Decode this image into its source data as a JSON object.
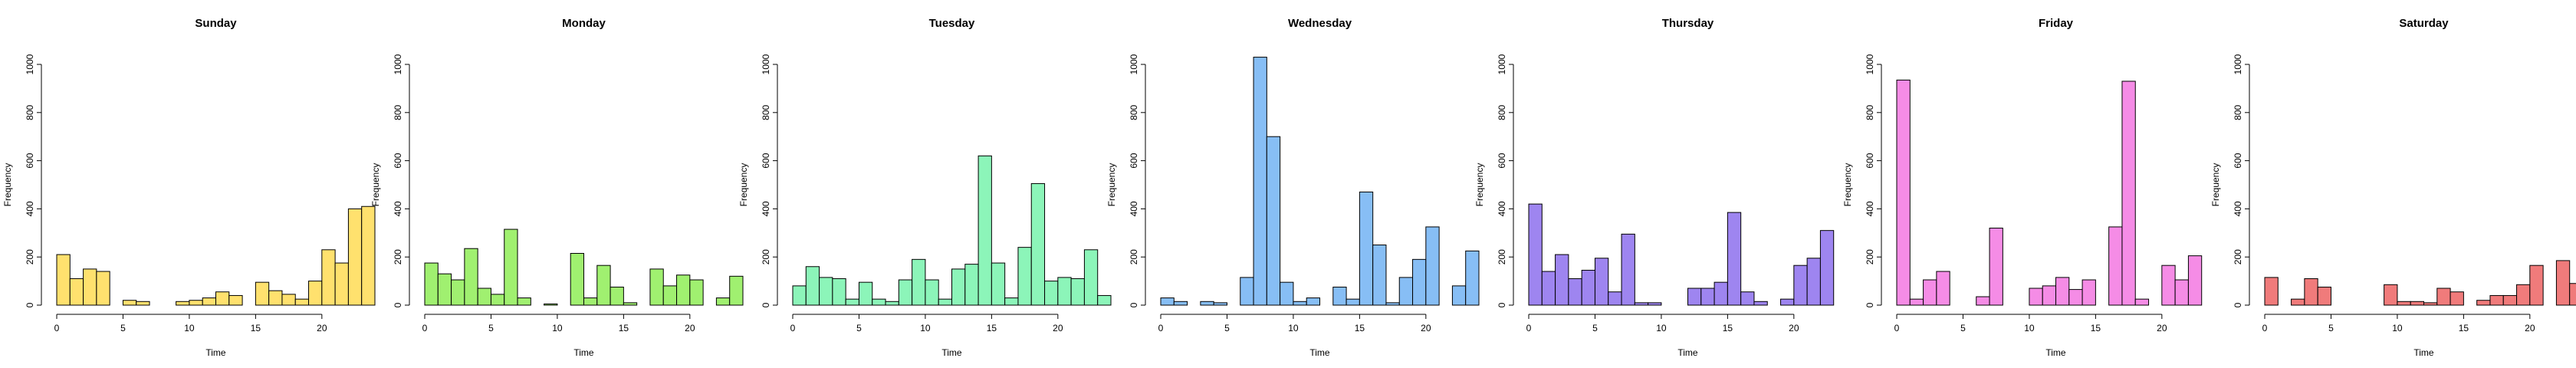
{
  "chart_data": [
    {
      "type": "bar",
      "title": "Sunday",
      "xlabel": "Time",
      "ylabel": "Frequency",
      "color": "#FFE16E",
      "xlim": [
        0,
        24
      ],
      "ylim": [
        0,
        1000
      ],
      "xticks": [
        0,
        5,
        10,
        15,
        20
      ],
      "yticks": [
        0,
        200,
        400,
        600,
        800,
        1000
      ],
      "bin_width": 1,
      "values": [
        210,
        110,
        150,
        140,
        0,
        20,
        15,
        0,
        0,
        15,
        20,
        30,
        55,
        40,
        0,
        95,
        60,
        45,
        25,
        100,
        230,
        175,
        400,
        410
      ]
    },
    {
      "type": "bar",
      "title": "Monday",
      "xlabel": "Time",
      "ylabel": "Frequency",
      "color": "#A0F070",
      "xlim": [
        0,
        24
      ],
      "ylim": [
        0,
        1000
      ],
      "xticks": [
        0,
        5,
        10,
        15,
        20
      ],
      "yticks": [
        0,
        200,
        400,
        600,
        800,
        1000
      ],
      "bin_width": 1,
      "values": [
        175,
        130,
        105,
        235,
        70,
        45,
        315,
        30,
        0,
        5,
        0,
        215,
        30,
        165,
        75,
        10,
        0,
        150,
        80,
        125,
        105,
        0,
        30,
        120
      ]
    },
    {
      "type": "bar",
      "title": "Tuesday",
      "xlabel": "Time",
      "ylabel": "Frequency",
      "color": "#8CF5B9",
      "xlim": [
        0,
        24
      ],
      "ylim": [
        0,
        1000
      ],
      "xticks": [
        0,
        5,
        10,
        15,
        20
      ],
      "yticks": [
        0,
        200,
        400,
        600,
        800,
        1000
      ],
      "bin_width": 1,
      "values": [
        80,
        160,
        115,
        110,
        25,
        95,
        25,
        15,
        105,
        190,
        105,
        25,
        150,
        170,
        620,
        175,
        30,
        240,
        505,
        100,
        115,
        110,
        230,
        40
      ]
    },
    {
      "type": "bar",
      "title": "Wednesday",
      "xlabel": "Time",
      "ylabel": "Frequency",
      "color": "#87BEF5",
      "xlim": [
        0,
        24
      ],
      "ylim": [
        0,
        1000
      ],
      "xticks": [
        0,
        5,
        10,
        15,
        20
      ],
      "yticks": [
        0,
        200,
        400,
        600,
        800,
        1000
      ],
      "bin_width": 1,
      "values": [
        30,
        15,
        0,
        15,
        10,
        0,
        115,
        1030,
        700,
        95,
        15,
        30,
        0,
        75,
        25,
        470,
        250,
        10,
        115,
        190,
        325,
        0,
        80,
        225
      ]
    },
    {
      "type": "bar",
      "title": "Thursday",
      "xlabel": "Time",
      "ylabel": "Frequency",
      "color": "#9E85F0",
      "xlim": [
        0,
        24
      ],
      "ylim": [
        0,
        1000
      ],
      "xticks": [
        0,
        5,
        10,
        15,
        20
      ],
      "yticks": [
        0,
        200,
        400,
        600,
        800,
        1000
      ],
      "bin_width": 1,
      "values": [
        420,
        140,
        210,
        110,
        145,
        195,
        55,
        295,
        10,
        10,
        0,
        0,
        70,
        70,
        95,
        385,
        55,
        15,
        0,
        25,
        165,
        195,
        310,
        0
      ]
    },
    {
      "type": "bar",
      "title": "Friday",
      "xlabel": "Time",
      "ylabel": "Frequency",
      "color": "#F58CE6",
      "xlim": [
        0,
        24
      ],
      "ylim": [
        0,
        1000
      ],
      "xticks": [
        0,
        5,
        10,
        15,
        20
      ],
      "yticks": [
        0,
        200,
        400,
        600,
        800,
        1000
      ],
      "bin_width": 1,
      "values": [
        935,
        25,
        105,
        140,
        0,
        0,
        35,
        320,
        0,
        0,
        70,
        80,
        115,
        65,
        105,
        0,
        325,
        930,
        25,
        0,
        165,
        105,
        205,
        0
      ]
    },
    {
      "type": "bar",
      "title": "Saturday",
      "xlabel": "Time",
      "ylabel": "Frequency",
      "color": "#F07B7B",
      "xlim": [
        0,
        24
      ],
      "ylim": [
        0,
        1000
      ],
      "xticks": [
        0,
        5,
        10,
        15,
        20
      ],
      "yticks": [
        0,
        200,
        400,
        600,
        800,
        1000
      ],
      "bin_width": 1,
      "values": [
        115,
        0,
        25,
        110,
        75,
        0,
        0,
        0,
        0,
        85,
        15,
        15,
        10,
        70,
        55,
        0,
        20,
        40,
        40,
        85,
        165,
        0,
        185,
        90
      ]
    }
  ]
}
